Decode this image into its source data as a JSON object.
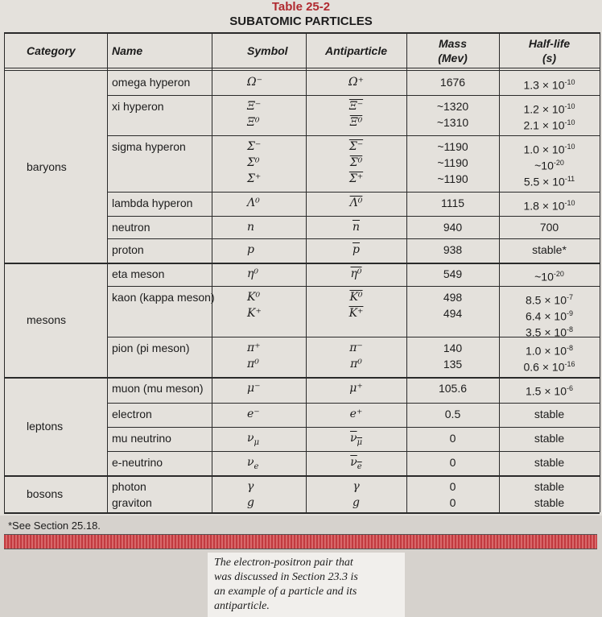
{
  "header": {
    "table_number": "Table 25-2",
    "title": "SUBATOMIC PARTICLES"
  },
  "table": {
    "columns": [
      [
        "Category"
      ],
      [
        "Name"
      ],
      [
        "Symbol"
      ],
      [
        "Antiparticle"
      ],
      [
        "Mass",
        "(Mev)"
      ],
      [
        "Half-life",
        "(s)"
      ]
    ],
    "groups": [
      {
        "category": "baryons",
        "rows": [
          {
            "name": [
              "omega hyperon"
            ],
            "symbol": [
              {
                "text": "Ω⁻"
              }
            ],
            "antiparticle": [
              {
                "text": "Ω⁺"
              }
            ],
            "mass": [
              "1676"
            ],
            "half_life": [
              {
                "base": "1.3 × 10",
                "exp": "-10"
              }
            ]
          },
          {
            "name": [
              "xi hyperon"
            ],
            "symbol": [
              {
                "text": "Ξ⁻"
              },
              {
                "text": "Ξ⁰"
              }
            ],
            "antiparticle": [
              {
                "text": "Ξ⁻",
                "bar": true
              },
              {
                "text": "Ξ⁰",
                "bar": true
              }
            ],
            "mass": [
              "~1320",
              "~1310"
            ],
            "half_life": [
              {
                "base": "1.2 × 10",
                "exp": "-10"
              },
              {
                "base": "2.1 × 10",
                "exp": "-10"
              }
            ]
          },
          {
            "name": [
              "sigma hyperon"
            ],
            "symbol": [
              {
                "text": "Σ⁻"
              },
              {
                "text": "Σ⁰"
              },
              {
                "text": "Σ⁺"
              }
            ],
            "antiparticle": [
              {
                "text": "Σ⁻",
                "bar": true
              },
              {
                "text": "Σ⁰",
                "bar": true
              },
              {
                "text": "Σ⁺",
                "bar": true
              }
            ],
            "mass": [
              "~1190",
              "~1190",
              "~1190"
            ],
            "half_life": [
              {
                "base": "1.0 × 10",
                "exp": "-10"
              },
              {
                "base": "~10",
                "exp": "-20"
              },
              {
                "base": "5.5 × 10",
                "exp": "-11"
              }
            ]
          },
          {
            "name": [
              "lambda hyperon"
            ],
            "symbol": [
              {
                "text": "Λ⁰"
              }
            ],
            "antiparticle": [
              {
                "text": "Λ⁰",
                "bar": true
              }
            ],
            "mass": [
              "1115"
            ],
            "half_life": [
              {
                "base": "1.8 × 10",
                "exp": "-10"
              }
            ]
          },
          {
            "name": [
              "neutron"
            ],
            "symbol": [
              {
                "text": "n"
              }
            ],
            "antiparticle": [
              {
                "text": "n",
                "bar": true
              }
            ],
            "mass": [
              "940"
            ],
            "half_life": [
              {
                "base": "700"
              }
            ]
          },
          {
            "name": [
              "proton"
            ],
            "symbol": [
              {
                "text": "p"
              }
            ],
            "antiparticle": [
              {
                "text": "p",
                "bar": true
              }
            ],
            "mass": [
              "938"
            ],
            "half_life": [
              {
                "base": "stable*"
              }
            ]
          }
        ]
      },
      {
        "category": "mesons",
        "rows": [
          {
            "name": [
              "eta meson"
            ],
            "symbol": [
              {
                "text": "η⁰"
              }
            ],
            "antiparticle": [
              {
                "text": "η⁰",
                "bar": true
              }
            ],
            "mass": [
              "549"
            ],
            "half_life": [
              {
                "base": "~10",
                "exp": "-20"
              }
            ]
          },
          {
            "name": [
              "kaon (kappa meson)"
            ],
            "symbol": [
              {
                "text": "K⁰"
              },
              {
                "text": "K⁺"
              }
            ],
            "antiparticle": [
              {
                "text": "K⁰",
                "bar": true
              },
              {
                "text": "K⁺",
                "bar": true
              }
            ],
            "mass": [
              "498",
              "494"
            ],
            "half_life": [
              {
                "base": "8.5 × 10",
                "exp": "-7"
              },
              {
                "base": "6.4 × 10",
                "exp": "-9"
              },
              {
                "base": "3.5 × 10",
                "exp": "-8"
              }
            ]
          },
          {
            "name": [
              "pion (pi meson)"
            ],
            "symbol": [
              {
                "text": "π⁺"
              },
              {
                "text": "π⁰"
              }
            ],
            "antiparticle": [
              {
                "text": "π⁻"
              },
              {
                "text": "π⁰"
              }
            ],
            "mass": [
              "140",
              "135"
            ],
            "half_life": [
              {
                "base": "1.0 × 10",
                "exp": "-8"
              },
              {
                "base": "0.6 × 10",
                "exp": "-16"
              }
            ]
          }
        ]
      },
      {
        "category": "leptons",
        "rows": [
          {
            "name": [
              "muon (mu meson)"
            ],
            "symbol": [
              {
                "text": "μ⁻"
              }
            ],
            "antiparticle": [
              {
                "text": "μ⁺"
              }
            ],
            "mass": [
              "105.6"
            ],
            "half_life": [
              {
                "base": "1.5 × 10",
                "exp": "-6"
              }
            ]
          },
          {
            "name": [
              "electron"
            ],
            "symbol": [
              {
                "text": "e⁻"
              }
            ],
            "antiparticle": [
              {
                "text": "e⁺"
              }
            ],
            "mass": [
              "0.5"
            ],
            "half_life": [
              {
                "base": "stable"
              }
            ]
          },
          {
            "name": [
              "mu neutrino"
            ],
            "symbol": [
              {
                "text": "ν",
                "sub": "μ"
              }
            ],
            "antiparticle": [
              {
                "text": "ν",
                "sub": "μ",
                "bar": true
              }
            ],
            "mass": [
              "0"
            ],
            "half_life": [
              {
                "base": "stable"
              }
            ]
          },
          {
            "name": [
              "e-neutrino"
            ],
            "symbol": [
              {
                "text": "ν",
                "sub": "e"
              }
            ],
            "antiparticle": [
              {
                "text": "ν",
                "sub": "e",
                "bar": true
              }
            ],
            "mass": [
              "0"
            ],
            "half_life": [
              {
                "base": "stable"
              }
            ]
          }
        ]
      },
      {
        "category": "bosons",
        "rows": [
          {
            "name": [
              "photon",
              "graviton"
            ],
            "symbol": [
              {
                "text": "γ"
              },
              {
                "text": "g"
              }
            ],
            "antiparticle": [
              {
                "text": "γ"
              },
              {
                "text": "g"
              }
            ],
            "mass": [
              "0",
              "0"
            ],
            "half_life": [
              {
                "base": "stable"
              },
              {
                "base": "stable"
              }
            ]
          }
        ]
      }
    ]
  },
  "footnote": "*See Section 25.18.",
  "caption": [
    "The electron-positron pair that",
    "was discussed in Section 23.3 is",
    "an example of a particle and its",
    "antiparticle."
  ]
}
